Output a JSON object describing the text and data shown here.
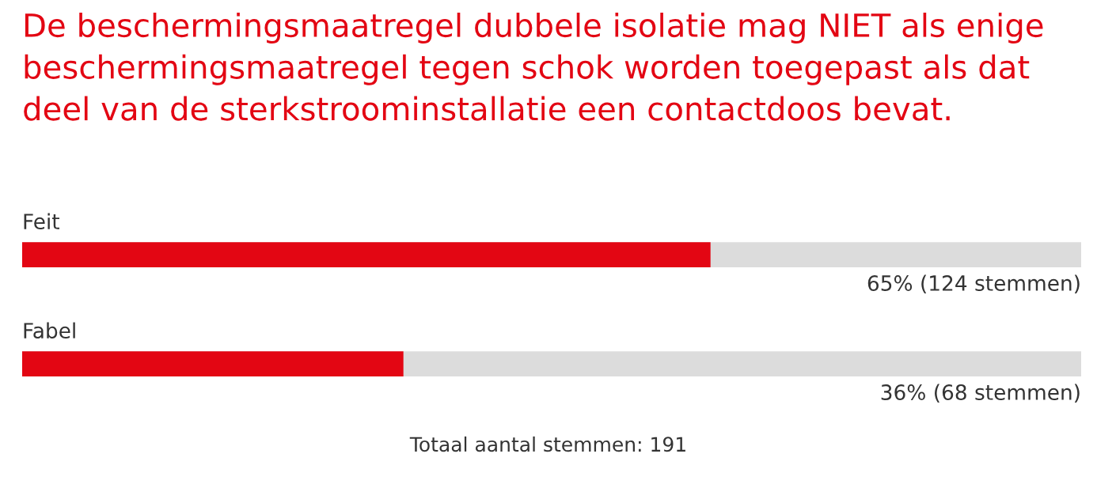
{
  "chart_data": {
    "type": "bar",
    "orientation": "horizontal",
    "title": "De beschermingsmaatregel dubbele isolatie mag NIET als enige\nbeschermingsmaatregel tegen schok worden toegepast als dat\ndeel van de sterkstroominstallatie een contactdoos bevat.",
    "categories": [
      "Feit",
      "Fabel"
    ],
    "values": [
      65,
      36
    ],
    "value_labels": [
      "65% (124 stemmen)",
      "36% (68 stemmen)"
    ],
    "color": "#e30613",
    "xlim": [
      0,
      100
    ],
    "bands": [
      {
        "axis": "x",
        "from": 0,
        "to": 100,
        "color": "#dcdcdc"
      }
    ],
    "tick_labels": false,
    "legend": false,
    "annotations": [
      "Totaal aantal stemmen: 191"
    ]
  }
}
